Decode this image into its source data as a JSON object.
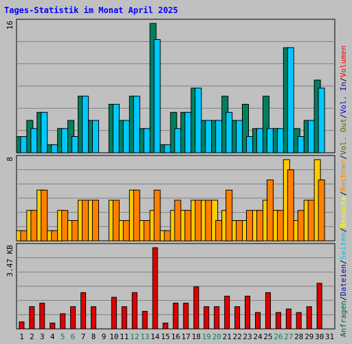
{
  "chart_data": {
    "type": "bar",
    "title": "Tages-Statistik im Monat April 2025",
    "categories": [
      "1",
      "2",
      "3",
      "4",
      "5",
      "6",
      "7",
      "8",
      "9",
      "10",
      "11",
      "12",
      "13",
      "14",
      "15",
      "16",
      "17",
      "18",
      "19",
      "20",
      "21",
      "22",
      "23",
      "24",
      "25",
      "26",
      "27",
      "28",
      "29",
      "30",
      "31"
    ],
    "weekend_days": [
      5,
      6,
      12,
      13,
      19,
      20,
      26,
      27
    ],
    "right_legend": [
      {
        "text": "Anfragen",
        "color": "#006040"
      },
      {
        "text": "Dateien",
        "color": "#0000c0"
      },
      {
        "text": "Seiten",
        "color": "#00c0ff"
      },
      {
        "text": "Besuche",
        "color": "#ffff00"
      },
      {
        "text": "Rechner",
        "color": "#ff8000"
      },
      {
        "text": "Vol. Out",
        "color": "#606000"
      },
      {
        "text": "Vol. In",
        "color": "#0000c0"
      },
      {
        "text": "Volumen",
        "color": "#ff0000"
      }
    ],
    "panels": [
      {
        "id": "requests",
        "max_label": "16",
        "ymax": 16,
        "series": [
          {
            "name": "Anfragen",
            "color": "#008060",
            "values": [
              2,
              4,
              5,
              1,
              3,
              4,
              7,
              4,
              0,
              6,
              4,
              7,
              3,
              16,
              1,
              5,
              5,
              8,
              4,
              4,
              7,
              4,
              6,
              3,
              7,
              3,
              13,
              3,
              4,
              9,
              null
            ]
          },
          {
            "name": "Seiten",
            "color": "#00c8ff",
            "values": [
              2,
              3,
              5,
              1,
              3,
              2,
              7,
              4,
              0,
              6,
              4,
              7,
              3,
              14,
              1,
              3,
              5,
              8,
              4,
              4,
              5,
              4,
              2,
              3,
              3,
              3,
              13,
              2,
              4,
              8,
              null
            ]
          }
        ]
      },
      {
        "id": "visits",
        "max_label": "8",
        "ymax": 8,
        "series": [
          {
            "name": "Besuche",
            "color": "#ffcc00",
            "values": [
              1,
              3,
              5,
              1,
              3,
              2,
              4,
              4,
              0,
              4,
              2,
              5,
              2,
              3,
              1,
              3,
              3,
              4,
              4,
              4,
              3,
              2,
              2,
              3,
              4,
              3,
              8,
              2,
              4,
              8,
              null
            ]
          },
          {
            "name": "Rechner",
            "color": "#ff8000",
            "values": [
              1,
              3,
              5,
              1,
              3,
              2,
              4,
              4,
              0,
              4,
              2,
              5,
              2,
              5,
              1,
              4,
              3,
              4,
              4,
              2,
              5,
              2,
              3,
              3,
              6,
              3,
              7,
              3,
              4,
              6,
              null
            ]
          }
        ]
      },
      {
        "id": "volume",
        "max_label": "3.47 KB",
        "ymax": 3.47,
        "series": [
          {
            "name": "Volumen",
            "color": "#e00000",
            "values": [
              0.3,
              0.95,
              1.1,
              0.25,
              0.65,
              0.95,
              1.55,
              0.95,
              0,
              1.35,
              0.95,
              1.55,
              0.75,
              3.47,
              0.25,
              1.1,
              1.1,
              1.8,
              0.95,
              0.95,
              1.4,
              0.95,
              1.4,
              0.7,
              1.55,
              0.7,
              0.85,
              0.7,
              0.95,
              1.95,
              null
            ]
          }
        ]
      }
    ]
  }
}
